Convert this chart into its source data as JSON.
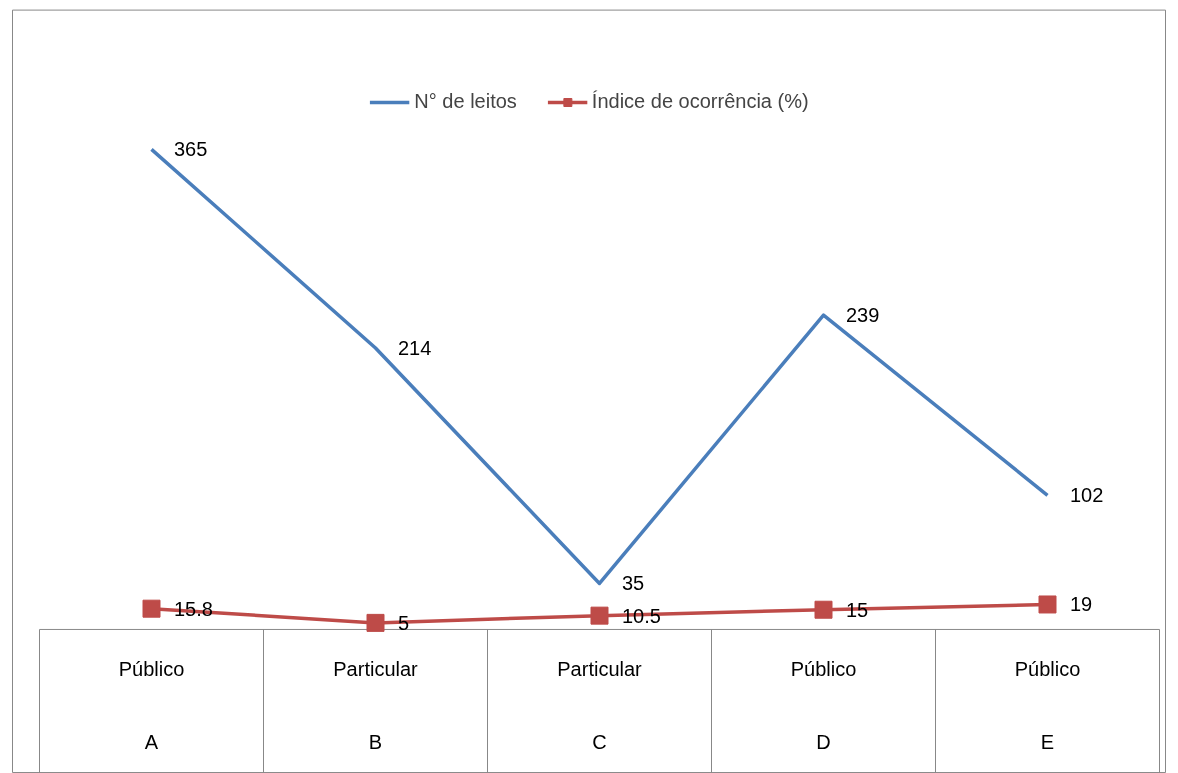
{
  "chart_data": {
    "type": "line",
    "categories": [
      "Público\nA",
      "Particular\nB",
      "Particular\nC",
      "Público\nD",
      "Público\nE"
    ],
    "series": [
      {
        "name": "N° de leitos",
        "color": "#4a7ebb",
        "values": [
          365,
          214,
          35,
          239,
          102
        ],
        "marker": "none"
      },
      {
        "name": "Índice de ocorrência (%)",
        "color": "#be4b48",
        "values": [
          15.8,
          5,
          10.5,
          15,
          19
        ],
        "marker": "square"
      }
    ],
    "data_labels": true,
    "legend": "top",
    "grid": false,
    "line_style": "solid"
  }
}
